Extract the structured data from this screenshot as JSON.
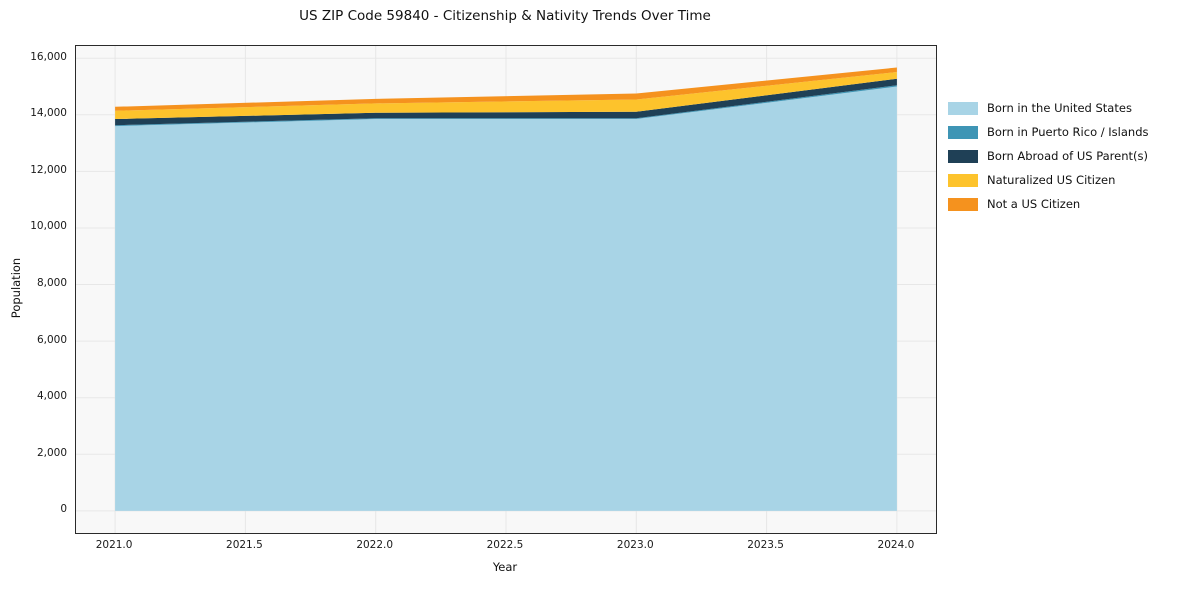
{
  "chart_data": {
    "type": "area",
    "stacked": true,
    "title": "US ZIP Code 59840 - Citizenship & Nativity Trends Over Time",
    "xlabel": "Year",
    "ylabel": "Population",
    "x": [
      2021,
      2022,
      2023,
      2024
    ],
    "series": [
      {
        "name": "Born in the United States",
        "color": "#a8d4e6",
        "values": [
          13600,
          13850,
          13850,
          15000
        ]
      },
      {
        "name": "Born in Puerto Rico / Islands",
        "color": "#3e95b5",
        "values": [
          30,
          30,
          30,
          40
        ]
      },
      {
        "name": "Born Abroad of US Parent(s)",
        "color": "#1f4056",
        "values": [
          220,
          190,
          230,
          230
        ]
      },
      {
        "name": "Naturalized US Citizen",
        "color": "#fdc32c",
        "values": [
          290,
          330,
          430,
          240
        ]
      },
      {
        "name": "Not a US Citizen",
        "color": "#f5921e",
        "values": [
          140,
          160,
          210,
          160
        ]
      }
    ],
    "totals": [
      14280,
      14560,
      14750,
      15670
    ],
    "xlim": [
      2020.85,
      2024.15
    ],
    "ylim": [
      -780,
      16430
    ],
    "xticks": [
      2021.0,
      2021.5,
      2022.0,
      2022.5,
      2023.0,
      2023.5,
      2024.0
    ],
    "xtick_labels": [
      "2021.0",
      "2021.5",
      "2022.0",
      "2022.5",
      "2023.0",
      "2023.5",
      "2024.0"
    ],
    "yticks": [
      0,
      2000,
      4000,
      6000,
      8000,
      10000,
      12000,
      14000,
      16000
    ],
    "ytick_labels": [
      "0",
      "2,000",
      "4,000",
      "6,000",
      "8,000",
      "10,000",
      "12,000",
      "14,000",
      "16,000"
    ],
    "grid": true,
    "legend_position": "right of plot",
    "plot_background": "#f8f8f8",
    "grid_color": "#e7e7e7",
    "spine_color": "#2a2a2a"
  }
}
